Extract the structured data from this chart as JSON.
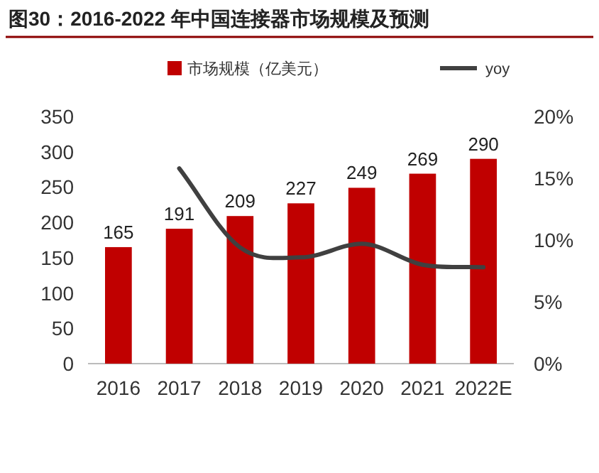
{
  "chart_data": {
    "type": "bar",
    "title": "图30：2016-2022 年中国连接器市场规模及预测",
    "categories": [
      "2016",
      "2017",
      "2018",
      "2019",
      "2020",
      "2021",
      "2022E"
    ],
    "series": [
      {
        "name": "市场规模（亿美元）",
        "color": "#c00000",
        "values": [
          165,
          191,
          209,
          227,
          249,
          269,
          290
        ],
        "value_labels": [
          "165",
          "191",
          "209",
          "227",
          "249",
          "269",
          "290"
        ]
      },
      {
        "name": "yoy",
        "type": "line",
        "axis": "y2",
        "color": "#404040",
        "values": [
          null,
          15.8,
          9.4,
          8.6,
          9.7,
          8.0,
          7.8
        ]
      }
    ],
    "ylim": [
      0,
      350
    ],
    "yticks": [
      0,
      50,
      100,
      150,
      200,
      250,
      300,
      350
    ],
    "y2lim": [
      0,
      20
    ],
    "y2ticks": [
      {
        "value": 0,
        "label": "0%"
      },
      {
        "value": 5,
        "label": "5%"
      },
      {
        "value": 10,
        "label": "10%"
      },
      {
        "value": 15,
        "label": "15%"
      },
      {
        "value": 20,
        "label": "20%"
      }
    ],
    "legend": "top",
    "grid": false
  }
}
